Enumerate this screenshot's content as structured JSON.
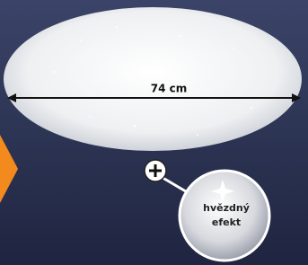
{
  "dimension": {
    "label": "74 cm"
  },
  "callout": {
    "lines": [
      "hvězdný",
      "efekt"
    ]
  }
}
